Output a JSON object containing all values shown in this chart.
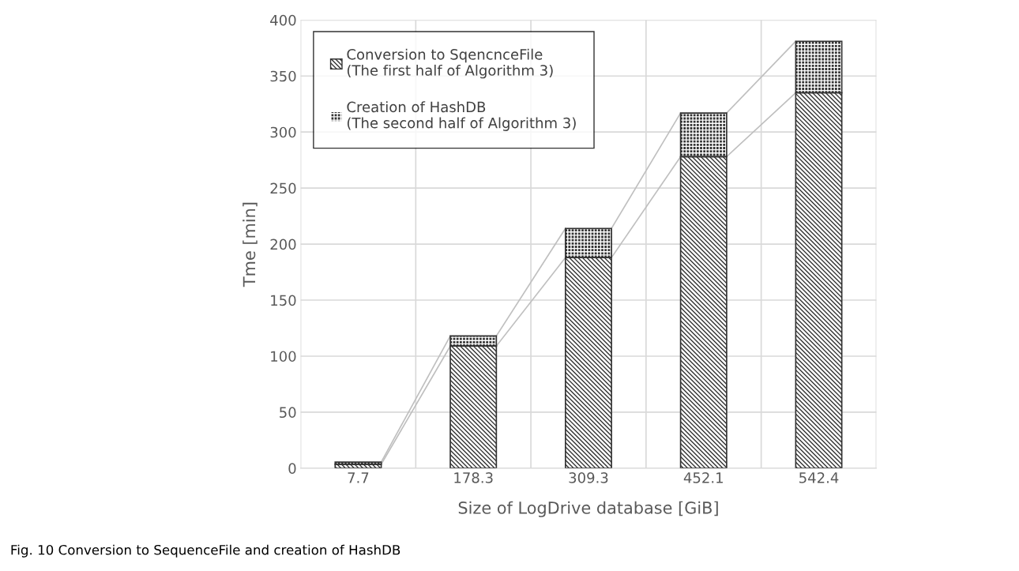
{
  "chart_data": {
    "type": "bar",
    "stacked": true,
    "xlabel": "Size of LogDrive database [GiB]",
    "ylabel": "Tme [min]",
    "categories": [
      "7.7",
      "178.3",
      "309.3",
      "452.1",
      "542.4"
    ],
    "series": [
      {
        "name": "Conversion to SqencnceFile\n(The first half of Algorithm 3)",
        "color": "#ffffff",
        "values": [
          3.5,
          109,
          188,
          278,
          335
        ]
      },
      {
        "name": "Creation of HashDB\n(The second half of Algorithm 3)",
        "color": "#333333",
        "values": [
          2,
          9,
          26,
          39,
          46
        ]
      }
    ],
    "ylim": [
      0,
      400
    ],
    "yticks": [
      0,
      50,
      100,
      150,
      200,
      250,
      300,
      350,
      400
    ],
    "grid": true,
    "legend": "top left",
    "annotations": [
      "Fig. 10 Conversion to SequenceFile and creation of HashDB"
    ]
  }
}
